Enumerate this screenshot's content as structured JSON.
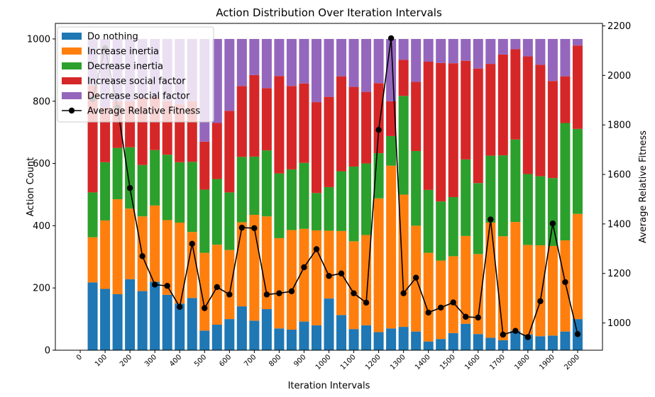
{
  "chart_data": {
    "type": "bar",
    "stacked": true,
    "title": "Action Distribution Over Iteration Intervals",
    "xlabel": "Iteration Intervals",
    "ylabel": "Action Count",
    "y2label": "Average Relative Fitness",
    "ylim": [
      0,
      1050
    ],
    "y2lim": [
      890,
      2210
    ],
    "xlim": [
      -100,
      2100
    ],
    "x": [
      50,
      100,
      150,
      200,
      250,
      300,
      350,
      400,
      450,
      500,
      550,
      600,
      650,
      700,
      750,
      800,
      850,
      900,
      950,
      1000,
      1050,
      1100,
      1150,
      1200,
      1250,
      1300,
      1350,
      1400,
      1450,
      1500,
      1550,
      1600,
      1650,
      1700,
      1750,
      1800,
      1850,
      1900,
      1950,
      2000
    ],
    "x_ticks": [
      0,
      100,
      200,
      300,
      400,
      500,
      600,
      700,
      800,
      900,
      1000,
      1100,
      1200,
      1300,
      1400,
      1500,
      1600,
      1700,
      1800,
      1900,
      2000
    ],
    "x_tick_labels": [
      "0",
      "100",
      "200",
      "300",
      "400",
      "500",
      "600",
      "700",
      "800",
      "900",
      "1000",
      "1100",
      "1200",
      "1300",
      "1400",
      "1500",
      "1600",
      "1700",
      "1800",
      "1900",
      "2000"
    ],
    "y_ticks": [
      0,
      200,
      400,
      600,
      800,
      1000
    ],
    "y_tick_labels": [
      "0",
      "200",
      "400",
      "600",
      "800",
      "1000"
    ],
    "y2_ticks": [
      1000,
      1200,
      1400,
      1600,
      1800,
      2000,
      2200
    ],
    "y2_tick_labels": [
      "1000",
      "1200",
      "1400",
      "1600",
      "1800",
      "2000",
      "2200"
    ],
    "legend_position": "top-left",
    "series": [
      {
        "name": "Do nothing",
        "color": "#1f77b4",
        "values": [
          218,
          197,
          180,
          228,
          190,
          220,
          178,
          150,
          168,
          63,
          82,
          100,
          141,
          95,
          132,
          70,
          66,
          92,
          80,
          166,
          113,
          68,
          80,
          58,
          70,
          75,
          60,
          28,
          36,
          55,
          85,
          52,
          40,
          32,
          62,
          50,
          45,
          47,
          60,
          100
        ]
      },
      {
        "name": "Increase inertia",
        "color": "#ff7f0e",
        "values": [
          145,
          220,
          305,
          227,
          240,
          245,
          240,
          260,
          212,
          250,
          257,
          222,
          270,
          340,
          298,
          290,
          320,
          298,
          305,
          218,
          270,
          282,
          290,
          430,
          523,
          425,
          340,
          285,
          252,
          247,
          282,
          257,
          370,
          334,
          350,
          288,
          292,
          288,
          293,
          338
        ]
      },
      {
        "name": "Decrease inertia",
        "color": "#2ca02c",
        "values": [
          144,
          187,
          165,
          197,
          165,
          178,
          210,
          194,
          225,
          203,
          211,
          185,
          210,
          187,
          212,
          208,
          195,
          212,
          120,
          140,
          192,
          240,
          230,
          145,
          95,
          317,
          240,
          202,
          190,
          190,
          246,
          228,
          215,
          260,
          265,
          228,
          222,
          218,
          377,
          273
        ]
      },
      {
        "name": "Increase social factor",
        "color": "#d62728",
        "values": [
          343,
          176,
          150,
          148,
          215,
          172,
          172,
          186,
          195,
          154,
          180,
          262,
          228,
          262,
          200,
          313,
          268,
          255,
          292,
          290,
          305,
          256,
          230,
          225,
          112,
          116,
          222,
          412,
          445,
          430,
          317,
          368,
          295,
          324,
          290,
          378,
          358,
          312,
          150,
          268
        ]
      },
      {
        "name": "Decrease social factor",
        "color": "#9467bd",
        "values": [
          150,
          220,
          200,
          200,
          190,
          185,
          200,
          210,
          200,
          330,
          270,
          231,
          151,
          116,
          158,
          119,
          151,
          143,
          203,
          186,
          120,
          154,
          170,
          142,
          200,
          67,
          138,
          73,
          77,
          78,
          70,
          95,
          80,
          50,
          33,
          56,
          83,
          135,
          120,
          21
        ]
      },
      {
        "name": "Average Relative Fitness",
        "color": "#000000",
        "type": "line",
        "axis": "y2",
        "values": [
          1905,
          2110,
          1870,
          1545,
          1270,
          1155,
          1150,
          1065,
          1320,
          1060,
          1145,
          1115,
          1385,
          1383,
          1115,
          1120,
          1128,
          1225,
          1298,
          1190,
          1200,
          1120,
          1082,
          1780,
          2150,
          1120,
          1183,
          1042,
          1062,
          1083,
          1025,
          1022,
          1418,
          953,
          968,
          943,
          1088,
          1402,
          1165,
          955
        ]
      }
    ]
  }
}
